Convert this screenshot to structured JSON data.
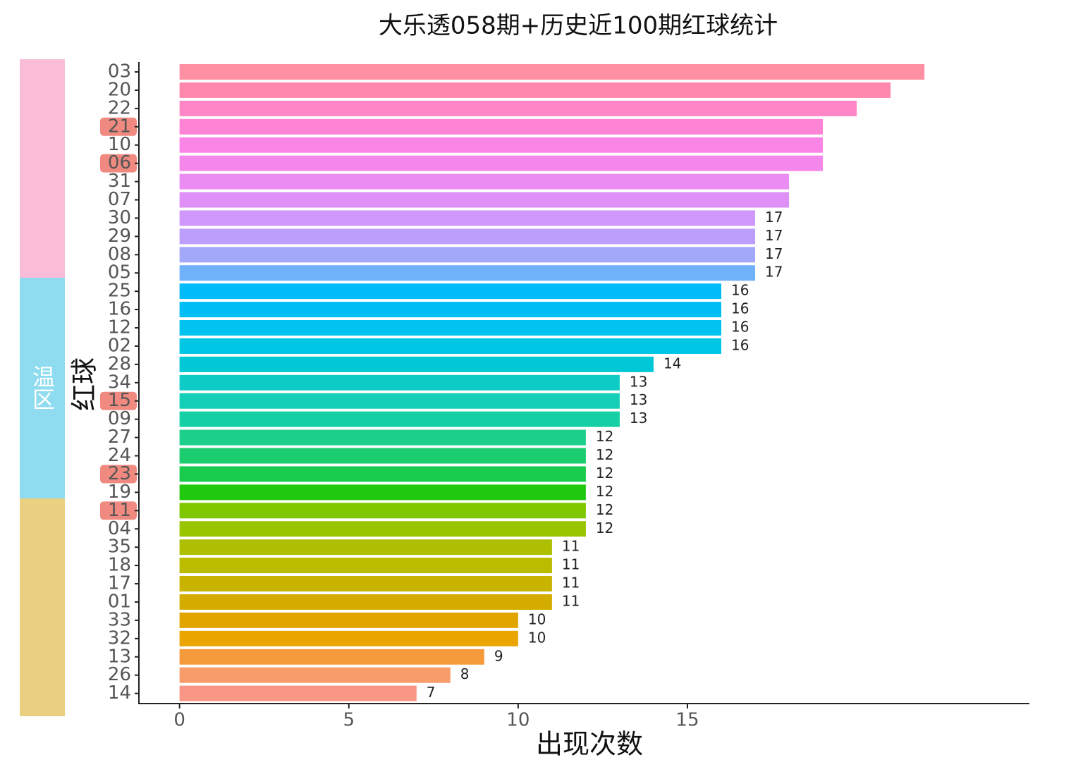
{
  "chart_data": {
    "type": "barh",
    "title": "大乐透058期+历史近100期红球统计",
    "x_label": "出现次数",
    "y_label": "红球",
    "zone_label": "温区",
    "categories": [
      "03",
      "20",
      "22",
      "21",
      "10",
      "06",
      "31",
      "07",
      "30",
      "29",
      "08",
      "05",
      "25",
      "16",
      "12",
      "02",
      "28",
      "34",
      "15",
      "09",
      "27",
      "24",
      "23",
      "19",
      "11",
      "04",
      "35",
      "18",
      "17",
      "01",
      "33",
      "32",
      "13",
      "26",
      "14"
    ],
    "values": [
      22,
      21,
      20,
      19,
      19,
      19,
      18,
      18,
      17,
      17,
      17,
      17,
      16,
      16,
      16,
      16,
      14,
      13,
      13,
      13,
      12,
      12,
      12,
      12,
      12,
      12,
      11,
      11,
      11,
      11,
      10,
      10,
      9,
      8,
      7
    ],
    "value_labels": [
      null,
      null,
      null,
      null,
      null,
      null,
      null,
      null,
      "17",
      "17",
      "17",
      "17",
      "16",
      "16",
      "16",
      "16",
      "14",
      "13",
      "13",
      "13",
      "12",
      "12",
      "12",
      "12",
      "12",
      "12",
      "11",
      "11",
      "11",
      "11",
      "10",
      "10",
      "9",
      "8",
      "7"
    ],
    "colors": [
      "#ff8fa3",
      "#ff88ad",
      "#ff86c6",
      "#ff84d6",
      "#fb85e6",
      "#f586ea",
      "#ea8cf2",
      "#de90f6",
      "#cf98fb",
      "#bd9efd",
      "#a3a8fa",
      "#70b2fa",
      "#00bbf9",
      "#00bdf5",
      "#00c2ef",
      "#00c6e6",
      "#00c8d6",
      "#0ecbc6",
      "#13cfb5",
      "#15d0a4",
      "#1ccf8a",
      "#1ccd70",
      "#19cc4e",
      "#20c90e",
      "#7fc800",
      "#99c400",
      "#adbf00",
      "#bbbb00",
      "#c8b400",
      "#d4ac00",
      "#e1a500",
      "#eba500",
      "#f59a3b",
      "#f99c6b",
      "#f99686"
    ],
    "highlighted": [
      false,
      false,
      false,
      true,
      false,
      true,
      false,
      false,
      false,
      false,
      false,
      false,
      false,
      false,
      false,
      false,
      false,
      false,
      true,
      false,
      false,
      false,
      true,
      false,
      true,
      false,
      false,
      false,
      false,
      false,
      false,
      false,
      false,
      false,
      false
    ],
    "highlight_color": "#f08a80",
    "xlim": [
      -1.2,
      25.1
    ],
    "xticks": [
      0,
      5,
      10,
      15
    ]
  }
}
